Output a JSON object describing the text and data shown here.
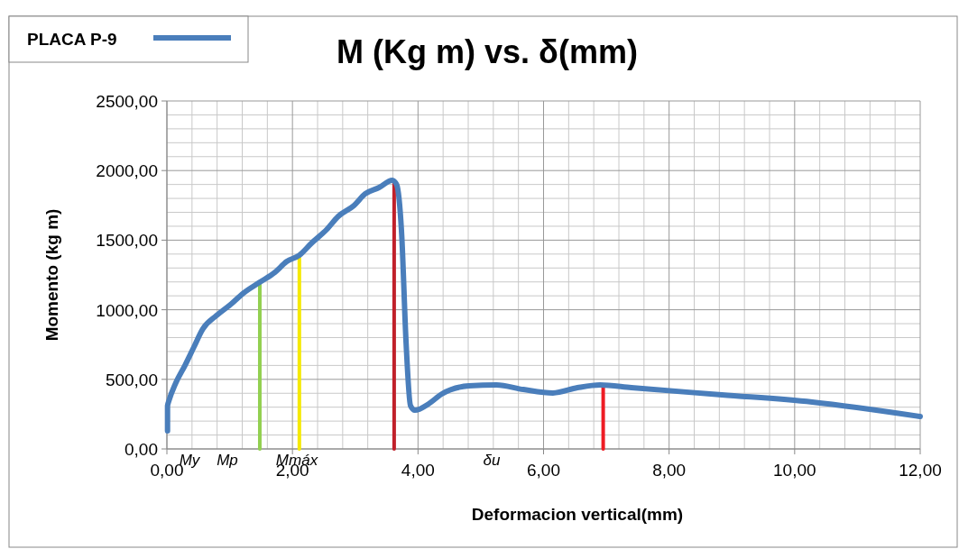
{
  "chart_data": {
    "type": "line",
    "title": "M (Kg m) vs. δ(mm)",
    "xlabel": "Deformacion vertical(mm)",
    "ylabel": "Momento (kg m)",
    "xlim": [
      0,
      12
    ],
    "xticks": [
      {
        "value": 0,
        "label": "0,00"
      },
      {
        "value": 2,
        "label": "2,00"
      },
      {
        "value": 4,
        "label": "4,00"
      },
      {
        "value": 6,
        "label": "6,00"
      },
      {
        "value": 8,
        "label": "8,00"
      },
      {
        "value": 10,
        "label": "10,00"
      },
      {
        "value": 12,
        "label": "12,00"
      }
    ],
    "ylim": [
      0,
      2500
    ],
    "yticks": [
      {
        "value": 0,
        "label": "0,00"
      },
      {
        "value": 500,
        "label": "500,00"
      },
      {
        "value": 1000,
        "label": "1000,00"
      },
      {
        "value": 1500,
        "label": "1500,00"
      },
      {
        "value": 2000,
        "label": "2000,00"
      },
      {
        "value": 2500,
        "label": "2500,00"
      }
    ],
    "grid": true,
    "legend": "top left",
    "line_style": "solid",
    "marker": "none",
    "series": [
      {
        "name": "PLACA P-9",
        "color": "#4a7ebb",
        "x": [
          0.01,
          0.01,
          0.03,
          0.14,
          0.29,
          0.43,
          0.57,
          0.79,
          1.01,
          1.22,
          1.48,
          1.72,
          1.91,
          2.11,
          2.3,
          2.54,
          2.73,
          2.98,
          3.16,
          3.38,
          3.59,
          3.66,
          3.74,
          3.81,
          3.88,
          3.95,
          4.17,
          4.38,
          4.81,
          5.25,
          5.68,
          6.15,
          6.54,
          6.9,
          7.4,
          8.84,
          10.28,
          12.0
        ],
        "values": [
          130,
          310,
          343,
          473,
          602,
          732,
          861,
          958,
          1036,
          1120,
          1198,
          1269,
          1347,
          1392,
          1477,
          1574,
          1671,
          1749,
          1833,
          1878,
          1930,
          1898,
          1541,
          764,
          311,
          278,
          324,
          395,
          453,
          460,
          427,
          402,
          440,
          460,
          440,
          389,
          337,
          233
        ]
      },
      {
        "type": "line",
        "color": "#92d050",
        "x": [
          1.48,
          1.48
        ],
        "values": [
          0,
          1198
        ]
      },
      {
        "type": "line",
        "color": "#f5e900",
        "x": [
          2.11,
          2.11
        ],
        "values": [
          0,
          1395
        ]
      },
      {
        "type": "line",
        "color": "#c0202a",
        "x": [
          3.62,
          3.62
        ],
        "values": [
          0,
          1910
        ]
      },
      {
        "type": "line",
        "color": "#ee1c24",
        "x": [
          6.95,
          6.95
        ],
        "values": [
          0,
          460
        ]
      }
    ],
    "annotations": [
      "My",
      "Mp",
      "Mmáx",
      "δu"
    ]
  }
}
